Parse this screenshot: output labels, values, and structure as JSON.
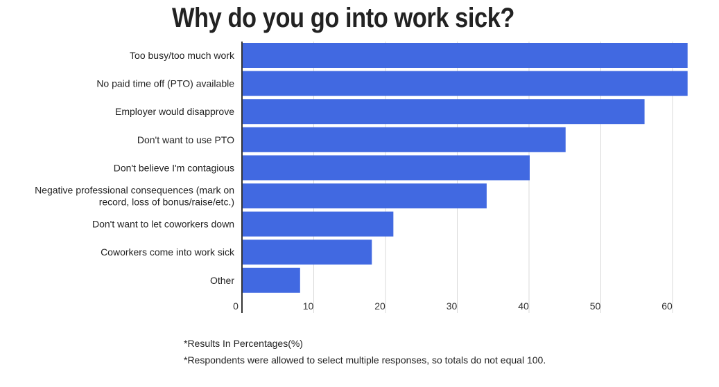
{
  "chart_data": {
    "type": "bar",
    "orientation": "horizontal",
    "title": "Why do you go into work sick?",
    "categories": [
      [
        "Too busy/too much work"
      ],
      [
        "No paid time off (PTO) available"
      ],
      [
        "Employer would disapprove"
      ],
      [
        "Don't want to use PTO"
      ],
      [
        "Don't believe I'm contagious"
      ],
      [
        "Negative professional consequences (mark on",
        "record, loss of bonus/raise/etc.)"
      ],
      [
        "Don't want to let coworkers down"
      ],
      [
        "Coworkers come into work sick"
      ],
      [
        "Other"
      ]
    ],
    "values": [
      62,
      62,
      56,
      45,
      40,
      34,
      21,
      18,
      8
    ],
    "xlim": [
      0,
      62
    ],
    "xticks": [
      0,
      10,
      20,
      30,
      40,
      50,
      60
    ],
    "grid": true,
    "bar_color": "#4169e1"
  },
  "notes": {
    "line1": "*Results In Percentages(%)",
    "line2": "*Respondents were allowed to select multiple responses, so totals do not equal 100."
  }
}
